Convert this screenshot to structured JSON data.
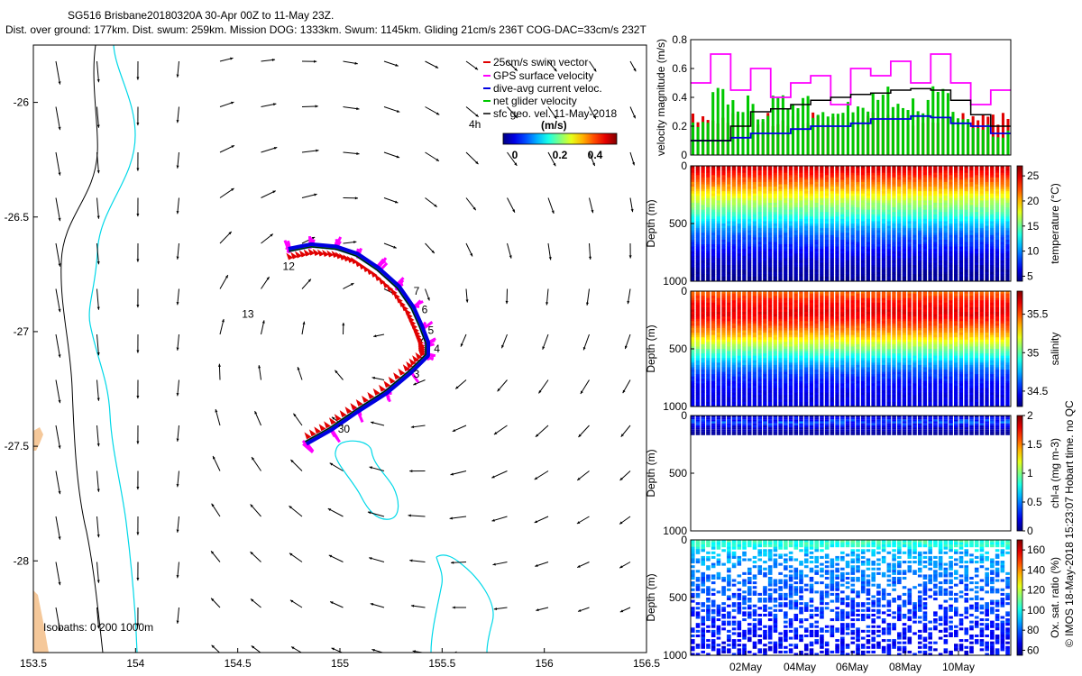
{
  "header": {
    "line1": "SG516 Brisbane20180320A 30-Apr 00Z to 11-May 23Z.",
    "line2": "Dist. over ground: 177km. Dist. swum: 259km. Mission DOG: 1333km. Swum: 1145km. Gliding 21cm/s 236T COG-DAC=33cm/s 232T"
  },
  "footer_note": "© IMOS 18-May-2018 15:23:07 Hobart time. no QC",
  "colors": {
    "swim": "#e00000",
    "gps": "#ff00ff",
    "dac": "#0000e0",
    "net": "#00c800",
    "land": "#f5c89a",
    "isobath_200": "#00d8e8",
    "isobath_1000": "#000000"
  },
  "chart_data": [
    {
      "type": "scatter",
      "panel": "map",
      "title": "",
      "xlabel": "",
      "ylabel": "",
      "xlim": [
        153.5,
        156.5
      ],
      "ylim": [
        -28.4,
        -25.75
      ],
      "xticks": [
        "153.5",
        "154",
        "154.5",
        "155",
        "155.5",
        "156",
        "156.5"
      ],
      "yticks": [
        "-26",
        "-26.5",
        "-27",
        "-27.5",
        "-28"
      ],
      "legend": {
        "placement": "top-right",
        "entries": [
          {
            "label": "25cm/s swim vector",
            "color": "#e00000"
          },
          {
            "label": "GPS surface velocity",
            "color": "#ff00ff"
          },
          {
            "label": "dive-avg current veloc.",
            "color": "#0000e0"
          },
          {
            "label": "net glider velocity",
            "color": "#00c800"
          },
          {
            "label": "sfc geo. vel. 11-May-2018",
            "color": "#000000"
          }
        ]
      },
      "colorbar": {
        "label": "(m/s)",
        "ticks": [
          "0",
          "0.2",
          "0.4"
        ],
        "range": [
          0,
          0.5
        ]
      },
      "scale_label": "4h",
      "isobaths_label": "Isobaths: 0   200   1000m",
      "track_day_labels": [
        {
          "text": "12",
          "lon": 154.72,
          "lat": -26.73
        },
        {
          "text": "13",
          "lon": 154.52,
          "lat": -26.94
        },
        {
          "text": "7",
          "lon": 155.36,
          "lat": -26.84
        },
        {
          "text": "6",
          "lon": 155.4,
          "lat": -26.92
        },
        {
          "text": "5",
          "lon": 155.43,
          "lat": -27.01
        },
        {
          "text": "4",
          "lon": 155.46,
          "lat": -27.09
        },
        {
          "text": "3",
          "lon": 155.36,
          "lat": -27.2
        },
        {
          "text": "30",
          "lon": 154.99,
          "lat": -27.44
        }
      ],
      "track": [
        [
          154.75,
          -26.65
        ],
        [
          154.86,
          -26.63
        ],
        [
          154.98,
          -26.64
        ],
        [
          155.08,
          -26.67
        ],
        [
          155.18,
          -26.73
        ],
        [
          155.28,
          -26.81
        ],
        [
          155.35,
          -26.9
        ],
        [
          155.39,
          -26.98
        ],
        [
          155.42,
          -27.05
        ],
        [
          155.42,
          -27.1
        ],
        [
          155.34,
          -27.17
        ],
        [
          155.22,
          -27.26
        ],
        [
          155.08,
          -27.34
        ],
        [
          154.95,
          -27.42
        ],
        [
          154.83,
          -27.48
        ]
      ]
    },
    {
      "type": "bar",
      "panel": "velocity",
      "ylabel": "velocity magnitude (m/s)",
      "ylim": [
        0,
        0.8
      ],
      "yticks": [
        "0",
        "0.2",
        "0.4",
        "0.6",
        "0.8"
      ],
      "series": [
        {
          "name": "25cm/s swim vector",
          "color": "#e00000",
          "values": [
            0.25,
            0.25,
            0.25,
            0.25,
            0.25,
            0.25,
            0.25,
            0.25,
            0.25,
            0.25,
            0.25,
            0.25,
            0.25,
            0.25,
            0.25,
            0.25
          ]
        },
        {
          "name": "GPS surface velocity",
          "color": "#ff00ff",
          "values": [
            0.5,
            0.7,
            0.45,
            0.6,
            0.4,
            0.5,
            0.55,
            0.35,
            0.6,
            0.55,
            0.65,
            0.5,
            0.7,
            0.5,
            0.35,
            0.45
          ]
        },
        {
          "name": "net glider velocity",
          "color": "#00c800",
          "values": [
            0.2,
            0.4,
            0.35,
            0.3,
            0.35,
            0.4,
            0.3,
            0.35,
            0.3,
            0.4,
            0.3,
            0.35,
            0.45,
            0.3,
            0.2,
            0.15
          ]
        },
        {
          "name": "dive-avg current veloc.",
          "color": "#0000e0",
          "values": [
            0.1,
            0.1,
            0.12,
            0.15,
            0.15,
            0.18,
            0.2,
            0.2,
            0.22,
            0.25,
            0.25,
            0.27,
            0.26,
            0.22,
            0.2,
            0.15
          ]
        },
        {
          "name": "sfc geo. vel. 11-May-2018",
          "color": "#000000",
          "values": [
            0.1,
            0.1,
            0.2,
            0.3,
            0.32,
            0.35,
            0.38,
            0.4,
            0.42,
            0.43,
            0.45,
            0.46,
            0.45,
            0.38,
            0.28,
            0.2
          ]
        }
      ]
    },
    {
      "type": "heatmap",
      "panel": "temperature",
      "ylabel": "Depth (m)",
      "colorbar_label": "temperature (°C)",
      "colorbar_ticks": [
        "5",
        "10",
        "15",
        "20",
        "25"
      ],
      "colorbar_range": [
        4,
        27
      ],
      "ylim": [
        1000,
        0
      ],
      "yticks": [
        "0",
        "500",
        "1000"
      ],
      "depth_profile": [
        [
          0,
          25.5
        ],
        [
          100,
          23
        ],
        [
          200,
          20
        ],
        [
          300,
          17
        ],
        [
          400,
          14.5
        ],
        [
          500,
          11.5
        ],
        [
          600,
          9
        ],
        [
          700,
          7.5
        ],
        [
          800,
          6
        ],
        [
          900,
          5
        ],
        [
          1000,
          4.5
        ]
      ]
    },
    {
      "type": "heatmap",
      "panel": "salinity",
      "ylabel": "Depth (m)",
      "colorbar_label": "salinity",
      "colorbar_ticks": [
        "34.5",
        "35",
        "35.5"
      ],
      "colorbar_range": [
        34.3,
        35.8
      ],
      "ylim": [
        1000,
        0
      ],
      "yticks": [
        "0",
        "500",
        "1000"
      ],
      "depth_profile": [
        [
          0,
          35.45
        ],
        [
          100,
          35.6
        ],
        [
          200,
          35.65
        ],
        [
          300,
          35.5
        ],
        [
          400,
          35.3
        ],
        [
          500,
          35.05
        ],
        [
          600,
          34.8
        ],
        [
          700,
          34.6
        ],
        [
          800,
          34.5
        ],
        [
          900,
          34.45
        ],
        [
          1000,
          34.45
        ]
      ]
    },
    {
      "type": "heatmap",
      "panel": "chla",
      "ylabel": "Depth (m)",
      "colorbar_label": "chl-a (mg m-3)",
      "colorbar_ticks": [
        "0",
        "0.5",
        "1",
        "1.5",
        "2"
      ],
      "colorbar_range": [
        0,
        2
      ],
      "ylim": [
        1000,
        0
      ],
      "yticks": [
        "0",
        "500",
        "1000"
      ],
      "depth_profile": [
        [
          0,
          0.15
        ],
        [
          50,
          0.4
        ],
        [
          100,
          0.15
        ],
        [
          150,
          0.05
        ]
      ]
    },
    {
      "type": "heatmap",
      "panel": "oxygen",
      "ylabel": "Depth (m)",
      "colorbar_label": "Ox. sat. ratio (%)",
      "colorbar_ticks": [
        "60",
        "80",
        "100",
        "120",
        "140",
        "160"
      ],
      "colorbar_range": [
        55,
        170
      ],
      "ylim": [
        1000,
        0
      ],
      "yticks": [
        "0",
        "500",
        "1000"
      ],
      "xticks": [
        "02May",
        "04May",
        "06May",
        "08May",
        "10May"
      ],
      "depth_profile": [
        [
          0,
          105
        ],
        [
          50,
          100
        ],
        [
          100,
          90
        ],
        [
          300,
          82
        ],
        [
          600,
          75
        ],
        [
          1000,
          68
        ]
      ]
    }
  ]
}
